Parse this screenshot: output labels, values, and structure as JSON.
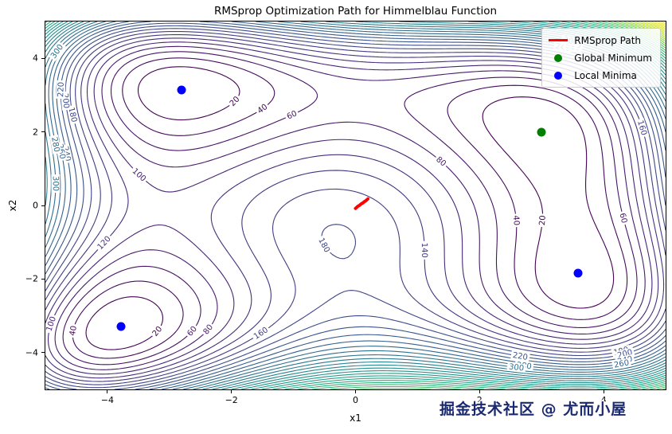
{
  "chart_data": {
    "type": "contour",
    "title": "RMSprop Optimization Path for Himmelblau Function",
    "xlabel": "x1",
    "ylabel": "x2",
    "x_range": [
      -5,
      5
    ],
    "y_range": [
      -5,
      5
    ],
    "x_ticks": [
      {
        "value": -4,
        "label": "−4"
      },
      {
        "value": -2,
        "label": "−2"
      },
      {
        "value": 0,
        "label": "0"
      },
      {
        "value": 2,
        "label": "2"
      },
      {
        "value": 4,
        "label": "4"
      }
    ],
    "y_ticks": [
      {
        "value": -4,
        "label": "−4"
      },
      {
        "value": -2,
        "label": "−2"
      },
      {
        "value": 0,
        "label": "0"
      },
      {
        "value": 2,
        "label": "2"
      },
      {
        "value": 4,
        "label": "4"
      }
    ],
    "function_name": "Himmelblau",
    "function_js": "Math.pow(x*x + y - 11, 2) + Math.pow(x + y*y - 7, 2)",
    "contour_levels": {
      "start": 20,
      "step": 20,
      "end": 880
    },
    "labeled_level_max": 300,
    "visible_contour_labels": [
      20,
      40,
      60,
      80,
      100,
      120,
      140,
      160,
      180,
      200,
      220,
      240,
      260,
      280,
      300
    ],
    "colormap": {
      "name": "viridis",
      "stops": [
        "#440154",
        "#482878",
        "#3e4a89",
        "#31688e",
        "#26828e",
        "#1f9e89",
        "#35b779",
        "#6dcd59",
        "#b4de2c",
        "#dfe318",
        "#fde725"
      ]
    },
    "series": {
      "rmsprop_path": {
        "label": "RMSprop Path",
        "color": "#ff0000",
        "points": [
          [
            0.0,
            -0.08
          ],
          [
            0.02,
            -0.05
          ],
          [
            0.04,
            -0.02
          ],
          [
            0.07,
            0.01
          ],
          [
            0.09,
            0.04
          ],
          [
            0.12,
            0.07
          ],
          [
            0.14,
            0.1
          ],
          [
            0.16,
            0.12
          ],
          [
            0.18,
            0.15
          ],
          [
            0.2,
            0.18
          ]
        ]
      },
      "global_minimum": {
        "label": "Global Minimum",
        "color": "#008000",
        "points": [
          [
            3.0,
            2.0
          ]
        ]
      },
      "local_minima": {
        "label": "Local Minima",
        "color": "#0000ff",
        "points": [
          [
            -2.805118,
            3.131312
          ],
          [
            -3.77931,
            -3.283186
          ],
          [
            3.584428,
            -1.848126
          ]
        ]
      }
    },
    "legend": {
      "position": "upper right",
      "items": [
        {
          "label": "RMSprop Path",
          "marker": "line",
          "color": "#ff0000"
        },
        {
          "label": "Global Minimum",
          "marker": "circle",
          "color": "#008000"
        },
        {
          "label": "Local Minima",
          "marker": "circle",
          "color": "#0000ff"
        }
      ]
    }
  },
  "watermark": {
    "text": "掘金技术社区 @ 尤而小屋",
    "color": "#1b2a70"
  },
  "colors": {
    "background": "#ffffff",
    "axes_frame": "#000000",
    "text": "#000000"
  }
}
